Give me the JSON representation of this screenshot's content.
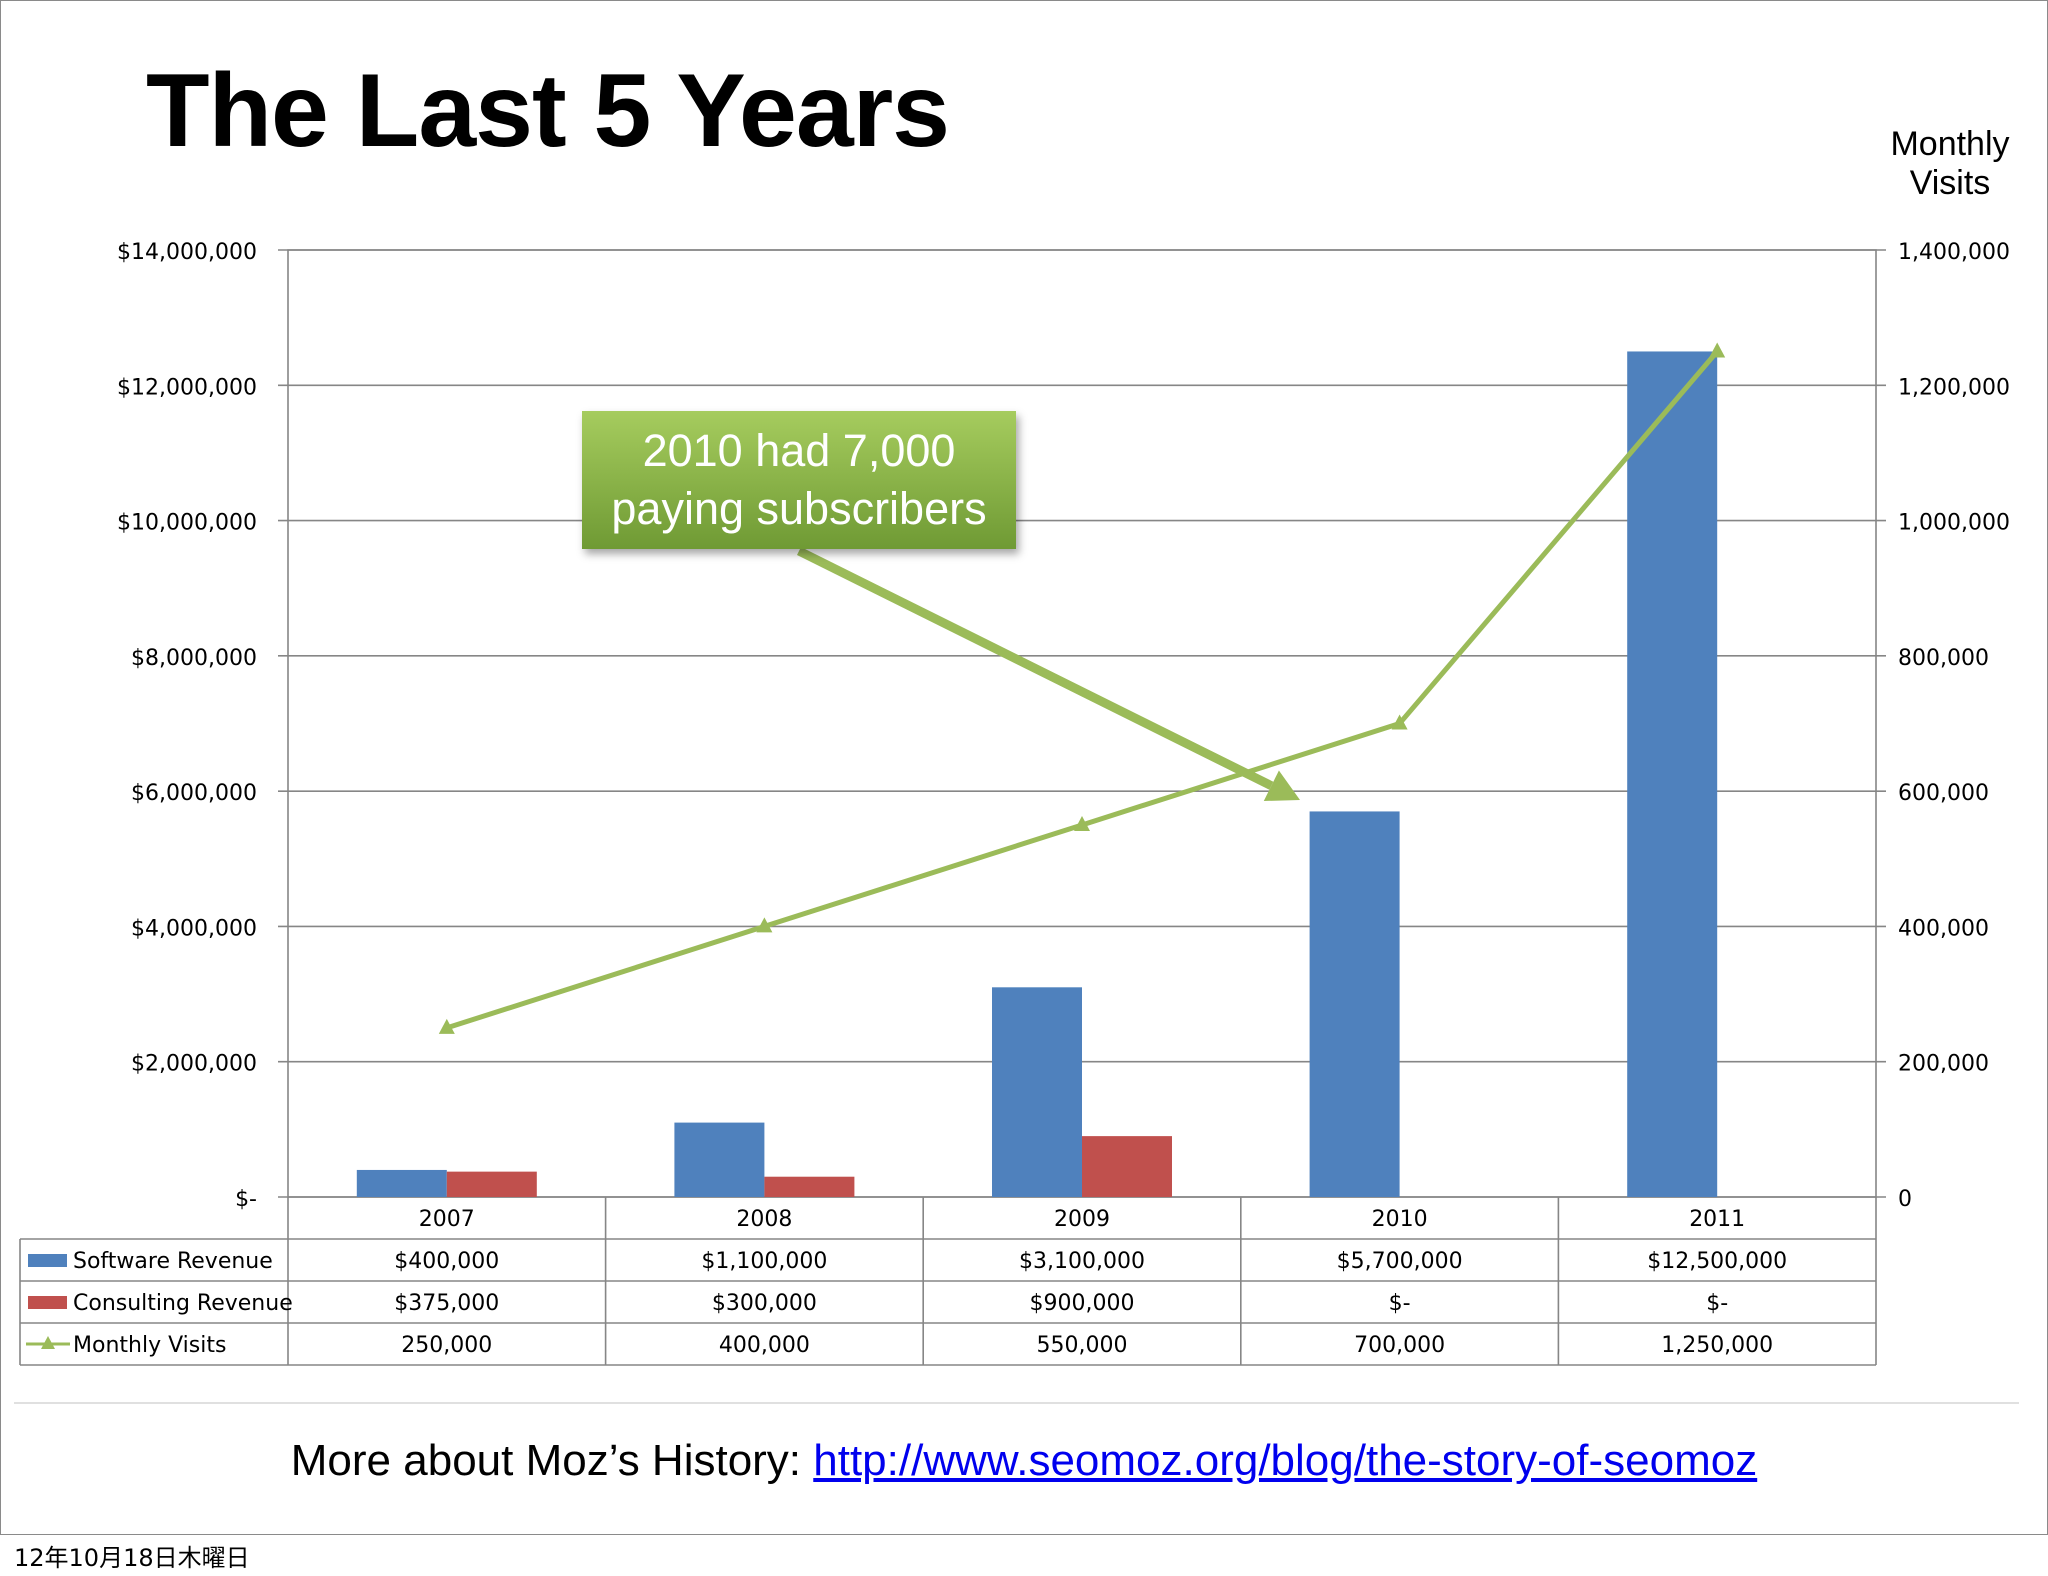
{
  "slide": {
    "title": "The Last 5 Years",
    "right_axis_title_line1": "Monthly",
    "right_axis_title_line2": "Visits",
    "callout_line1": "2010 had 7,000",
    "callout_line2": "paying subscribers",
    "footer_prefix": "More about Moz’s History: ",
    "footer_link": "http://www.seomoz.org/blog/the-story-of-seomoz",
    "date_stamp": "12年10月18日木曜日"
  },
  "colors": {
    "software": "#4f81bd",
    "consulting": "#c0504d",
    "visits": "#9bbb59",
    "grid": "#868686",
    "link": "#0000ee"
  },
  "chart_data": {
    "type": "bar",
    "categories": [
      "2007",
      "2008",
      "2009",
      "2010",
      "2011"
    ],
    "series": [
      {
        "name": "Software Revenue",
        "type": "bar",
        "axis": "left",
        "values": [
          400000,
          1100000,
          3100000,
          5700000,
          12500000
        ],
        "labels": [
          "$400,000",
          "$1,100,000",
          "$3,100,000",
          "$5,700,000",
          "$12,500,000"
        ]
      },
      {
        "name": "Consulting Revenue",
        "type": "bar",
        "axis": "left",
        "values": [
          375000,
          300000,
          900000,
          0,
          0
        ],
        "labels": [
          "$375,000",
          "$300,000",
          "$900,000",
          "$-",
          "$-"
        ]
      },
      {
        "name": "Monthly Visits",
        "type": "line",
        "axis": "right",
        "values": [
          250000,
          400000,
          550000,
          700000,
          1250000
        ],
        "labels": [
          "250,000",
          "400,000",
          "550,000",
          "700,000",
          "1,250,000"
        ]
      }
    ],
    "ylim": [
      0,
      14000000
    ],
    "y2lim": [
      0,
      1400000
    ],
    "yticks": [
      "$-",
      "$2,000,000",
      "$4,000,000",
      "$6,000,000",
      "$8,000,000",
      "$10,000,000",
      "$12,000,000",
      "$14,000,000"
    ],
    "y2ticks": [
      "0",
      "200,000",
      "400,000",
      "600,000",
      "800,000",
      "1,000,000",
      "1,200,000",
      "1,400,000"
    ],
    "y2label": "Monthly Visits",
    "grid": true,
    "legend": "data-table"
  }
}
